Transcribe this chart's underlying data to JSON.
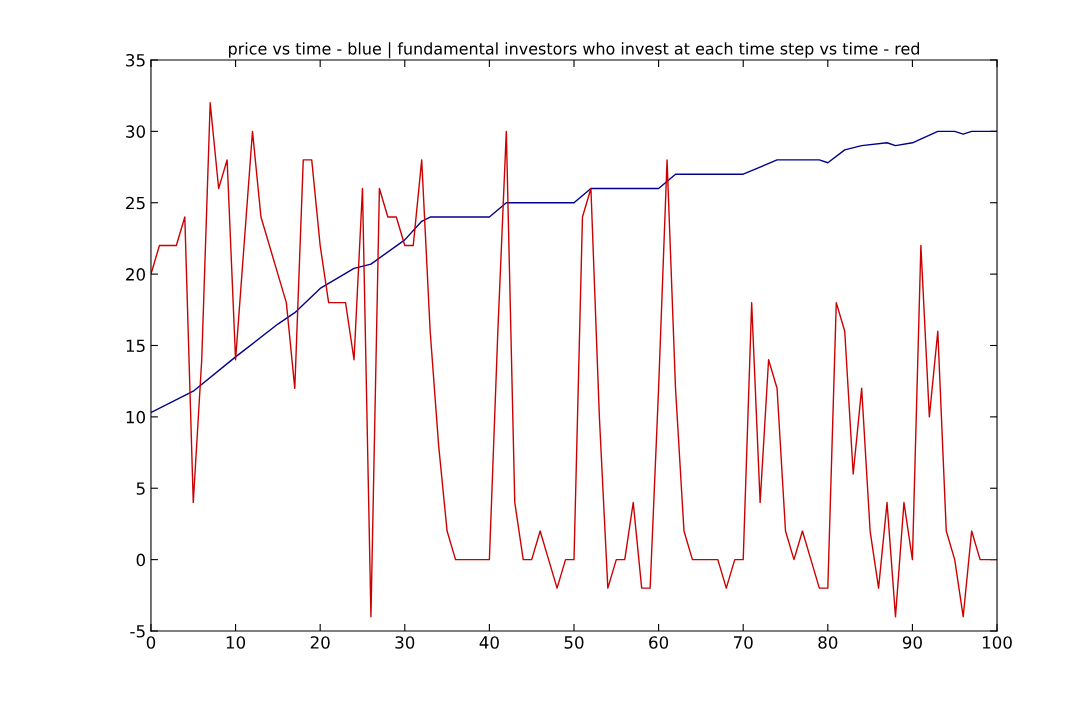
{
  "chart_data": {
    "type": "line",
    "title": "price vs time - blue | fundamental investors who invest at each time step vs time - red",
    "x": [
      0,
      1,
      2,
      3,
      4,
      5,
      6,
      7,
      8,
      9,
      10,
      11,
      12,
      13,
      14,
      15,
      16,
      17,
      18,
      19,
      20,
      21,
      22,
      23,
      24,
      25,
      26,
      27,
      28,
      29,
      30,
      31,
      32,
      33,
      34,
      35,
      36,
      37,
      38,
      39,
      40,
      41,
      42,
      43,
      44,
      45,
      46,
      47,
      48,
      49,
      50,
      51,
      52,
      53,
      54,
      55,
      56,
      57,
      58,
      59,
      60,
      61,
      62,
      63,
      64,
      65,
      66,
      67,
      68,
      69,
      70,
      71,
      72,
      73,
      74,
      75,
      76,
      77,
      78,
      79,
      80,
      81,
      82,
      83,
      84,
      85,
      86,
      87,
      88,
      89,
      90,
      91,
      92,
      93,
      94,
      95,
      96,
      97,
      98,
      99,
      100
    ],
    "series": [
      {
        "color": "#00008b",
        "x": [
          0,
          5,
          10,
          15,
          17,
          20,
          24,
          26,
          30,
          32,
          33,
          40,
          42,
          50,
          52,
          60,
          62,
          70,
          74,
          79,
          80,
          82,
          84,
          87,
          88,
          90,
          93,
          95,
          96,
          97,
          100
        ],
        "values": [
          10.3,
          11.8,
          14.2,
          16.5,
          17.3,
          19,
          20.4,
          20.7,
          22.4,
          23.7,
          24,
          24,
          25,
          25,
          26,
          26,
          27,
          27,
          28,
          28,
          27.8,
          28.7,
          29,
          29.2,
          29,
          29.2,
          30,
          30,
          29.8,
          30,
          30
        ]
      },
      {
        "color": "#cc0000",
        "values": [
          20,
          22,
          22,
          22,
          24,
          4,
          14,
          32,
          26,
          28,
          14,
          22,
          30,
          24,
          22,
          20,
          18,
          12,
          28,
          28,
          22,
          18,
          18,
          18,
          14,
          26,
          -4,
          26,
          24,
          24,
          22,
          22,
          28,
          16,
          8,
          2,
          0,
          0,
          0,
          0,
          0,
          16,
          30,
          4,
          0,
          0,
          2,
          0,
          -2,
          0,
          0,
          24,
          26,
          10,
          -2,
          0,
          0,
          4,
          -2,
          -2,
          12,
          28,
          12,
          2,
          0,
          0,
          0,
          0,
          -2,
          0,
          0,
          18,
          4,
          14,
          12,
          2,
          0,
          2,
          0,
          -2,
          -2,
          18,
          16,
          6,
          12,
          2,
          -2,
          4,
          -4,
          4,
          0,
          22,
          10,
          16,
          2,
          0,
          -4,
          2,
          0,
          0,
          0
        ]
      }
    ],
    "xlim": [
      0,
      100
    ],
    "xticks": [
      0,
      10,
      20,
      30,
      40,
      50,
      60,
      70,
      80,
      90,
      100
    ],
    "ylim": [
      -5,
      35
    ],
    "yticks": [
      -5,
      0,
      5,
      10,
      15,
      20,
      25,
      30,
      35
    ],
    "grid": false,
    "legend": false,
    "marker": "none",
    "line_style": "solid"
  }
}
